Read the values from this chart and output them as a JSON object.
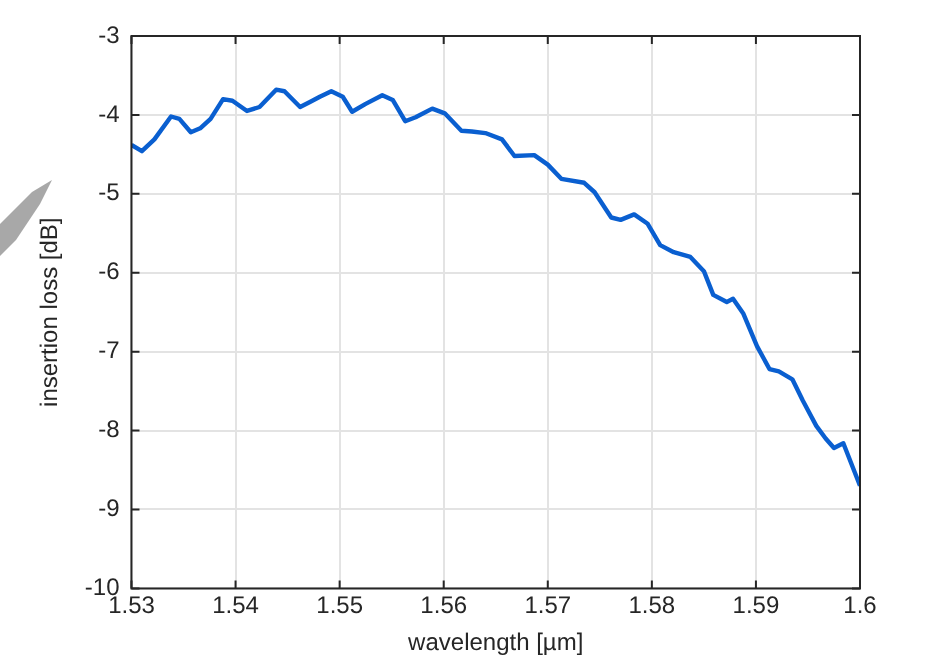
{
  "chart_data": {
    "type": "line",
    "xlabel": "wavelength [µm]",
    "ylabel": "insertion loss [dB]",
    "xlim": [
      1.53,
      1.6
    ],
    "xticks": [
      1.53,
      1.54,
      1.55,
      1.56,
      1.57,
      1.58,
      1.59,
      1.6
    ],
    "ylim": [
      -10,
      -3
    ],
    "yticks": [
      -10,
      -9,
      -8,
      -7,
      -6,
      -5,
      -4,
      -3
    ],
    "grid": true,
    "legend": false,
    "marker": "none",
    "line_style": "solid",
    "series": [
      {
        "color": "#0a5fd0",
        "x": [
          1.53,
          1.531,
          1.5322,
          1.5338,
          1.5346,
          1.5357,
          1.5366,
          1.5376,
          1.5388,
          1.5397,
          1.5411,
          1.5423,
          1.5439,
          1.5447,
          1.5462,
          1.5471,
          1.5481,
          1.5492,
          1.5503,
          1.5512,
          1.5525,
          1.5541,
          1.5551,
          1.5563,
          1.5573,
          1.5589,
          1.5601,
          1.5617,
          1.5627,
          1.564,
          1.5656,
          1.5668,
          1.5687,
          1.57,
          1.5713,
          1.5735,
          1.5745,
          1.5761,
          1.577,
          1.5783,
          1.5796,
          1.5808,
          1.5821,
          1.5837,
          1.585,
          1.5859,
          1.5872,
          1.5878,
          1.5888,
          1.5901,
          1.5913,
          1.5922,
          1.5935,
          1.5945,
          1.5958,
          1.5967,
          1.5975,
          1.5984,
          1.5992,
          1.6
        ],
        "values": [
          -4.38,
          -4.46,
          -4.31,
          -4.02,
          -4.05,
          -4.22,
          -4.17,
          -4.05,
          -3.8,
          -3.82,
          -3.95,
          -3.9,
          -3.68,
          -3.7,
          -3.9,
          -3.84,
          -3.77,
          -3.7,
          -3.77,
          -3.96,
          -3.86,
          -3.75,
          -3.81,
          -4.08,
          -4.03,
          -3.92,
          -3.98,
          -4.2,
          -4.21,
          -4.23,
          -4.31,
          -4.52,
          -4.51,
          -4.63,
          -4.81,
          -4.86,
          -4.98,
          -5.3,
          -5.33,
          -5.26,
          -5.38,
          -5.65,
          -5.74,
          -5.8,
          -5.98,
          -6.28,
          -6.37,
          -6.33,
          -6.52,
          -6.93,
          -7.22,
          -7.25,
          -7.35,
          -7.62,
          -7.94,
          -8.1,
          -8.22,
          -8.16,
          -8.43,
          -8.7
        ]
      }
    ]
  }
}
